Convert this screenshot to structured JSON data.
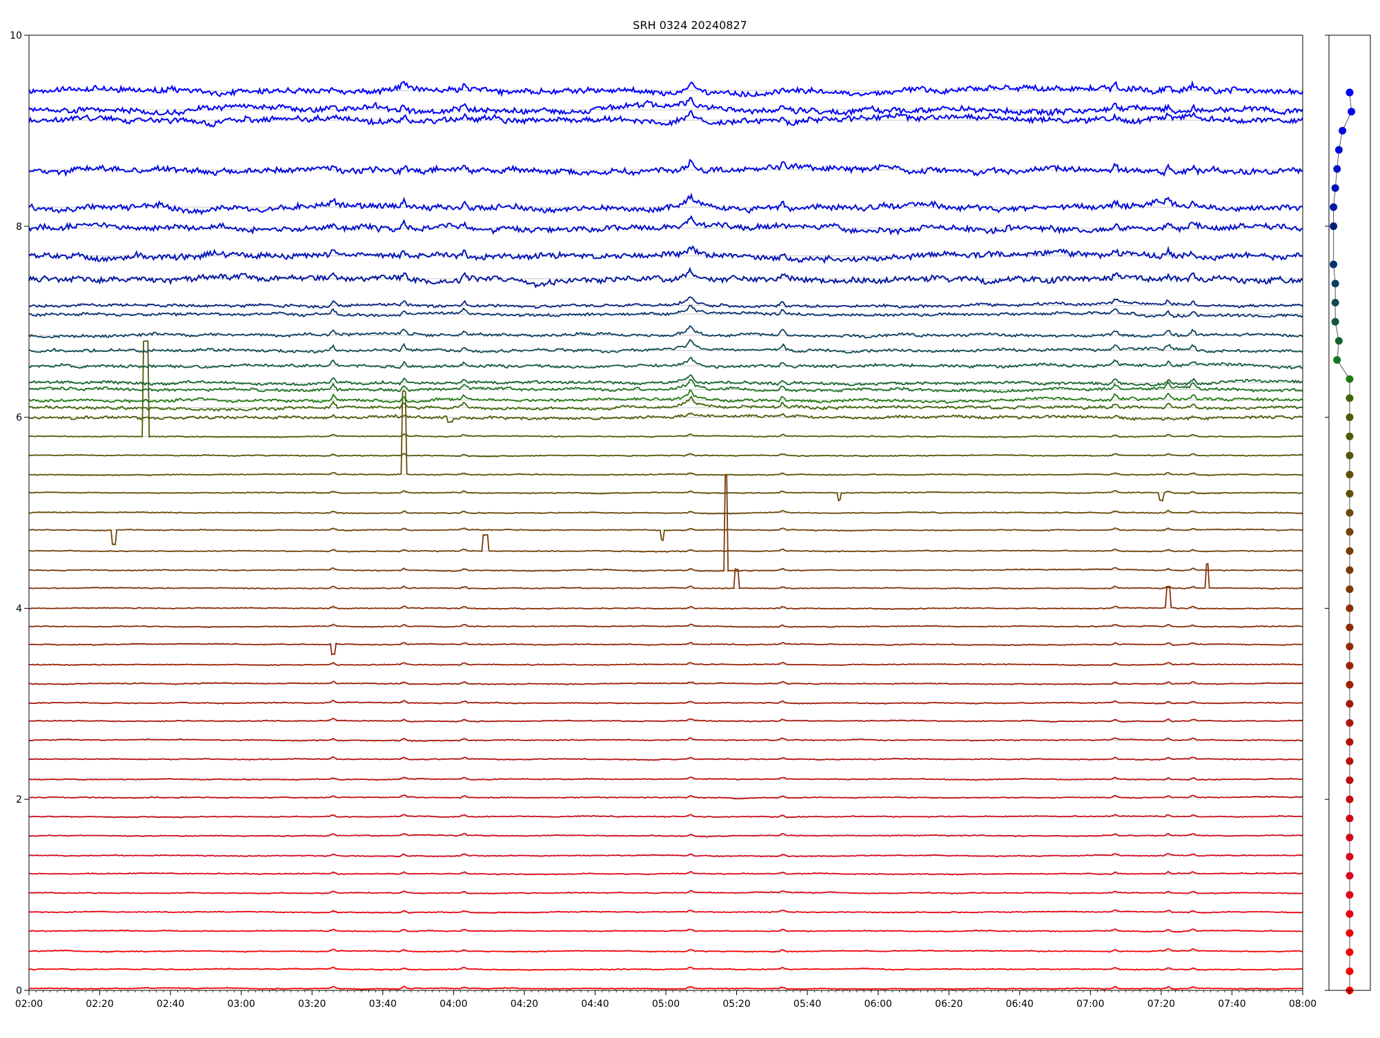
{
  "chart_data": [
    {
      "type": "line",
      "title": "SRH 0324 20240827",
      "xlabel": "",
      "ylabel": "",
      "xlim": [
        "02:00",
        "08:00"
      ],
      "ylim": [
        0,
        10
      ],
      "x_ticks": [
        "02:00",
        "02:20",
        "02:40",
        "03:00",
        "03:20",
        "03:40",
        "04:00",
        "04:20",
        "04:40",
        "05:00",
        "05:20",
        "05:40",
        "06:00",
        "06:20",
        "06:40",
        "07:00",
        "07:20",
        "07:40",
        "08:00"
      ],
      "y_ticks": [
        "0",
        "2",
        "4",
        "6",
        "8",
        "10"
      ],
      "grid": "horizontal lines at each trace baseline",
      "series_note": "48 stacked traces; baseline offsets in y data units, color per trace",
      "series": [
        {
          "offset": 0.0,
          "color": "#ff0000"
        },
        {
          "offset": 0.2,
          "color": "#f90205"
        },
        {
          "offset": 0.4,
          "color": "#f3030a"
        },
        {
          "offset": 0.6,
          "color": "#ed040f"
        },
        {
          "offset": 0.8,
          "color": "#e70514"
        },
        {
          "offset": 1.0,
          "color": "#e10619"
        },
        {
          "offset": 1.2,
          "color": "#db071e"
        },
        {
          "offset": 1.4,
          "color": "#d50820"
        },
        {
          "offset": 1.6,
          "color": "#cf0a1c"
        },
        {
          "offset": 1.8,
          "color": "#c90c18"
        },
        {
          "offset": 2.0,
          "color": "#c30e14"
        },
        {
          "offset": 2.2,
          "color": "#bd1010"
        },
        {
          "offset": 2.4,
          "color": "#b7120e"
        },
        {
          "offset": 2.6,
          "color": "#b1150c"
        },
        {
          "offset": 2.8,
          "color": "#ab180a"
        },
        {
          "offset": 3.0,
          "color": "#a51b08"
        },
        {
          "offset": 3.2,
          "color": "#9f1f08"
        },
        {
          "offset": 3.4,
          "color": "#992308"
        },
        {
          "offset": 3.6,
          "color": "#932708"
        },
        {
          "offset": 3.8,
          "color": "#8d2b08"
        },
        {
          "offset": 4.0,
          "color": "#873008"
        },
        {
          "offset": 4.2,
          "color": "#813508"
        },
        {
          "offset": 4.4,
          "color": "#7b3a08"
        },
        {
          "offset": 4.6,
          "color": "#753f08"
        },
        {
          "offset": 4.8,
          "color": "#6f4408"
        },
        {
          "offset": 5.0,
          "color": "#694908"
        },
        {
          "offset": 5.2,
          "color": "#634d08"
        },
        {
          "offset": 5.4,
          "color": "#5d5108"
        },
        {
          "offset": 5.6,
          "color": "#575508"
        },
        {
          "offset": 5.8,
          "color": "#515908"
        },
        {
          "offset": 6.0,
          "color": "#4b5d08"
        },
        {
          "offset": 6.2,
          "color": "#3f6408"
        },
        {
          "offset": 6.4,
          "color": "#1f7a10"
        },
        {
          "offset": 6.6,
          "color": "#1a7020"
        },
        {
          "offset": 6.8,
          "color": "#156430"
        },
        {
          "offset": 7.0,
          "color": "#115840"
        },
        {
          "offset": 7.2,
          "color": "#0d4c50"
        },
        {
          "offset": 7.4,
          "color": "#0a4060"
        },
        {
          "offset": 7.6,
          "color": "#083070"
        },
        {
          "offset": 7.8,
          "color": "#062080"
        },
        {
          "offset": 8.0,
          "color": "#0418a0"
        },
        {
          "offset": 8.2,
          "color": "#0314b8"
        },
        {
          "offset": 8.4,
          "color": "#0210c8"
        },
        {
          "offset": 8.6,
          "color": "#010cd8"
        },
        {
          "offset": 8.8,
          "color": "#0008e0"
        },
        {
          "offset": 9.0,
          "color": "#0004e8"
        },
        {
          "offset": 9.2,
          "color": "#0002f0"
        },
        {
          "offset": 9.4,
          "color": "#0000ff"
        }
      ],
      "trace_baselines_y": [
        0.02,
        0.22,
        0.41,
        0.62,
        0.82,
        1.02,
        1.22,
        1.41,
        1.62,
        1.82,
        2.02,
        2.21,
        2.42,
        2.62,
        2.82,
        3.01,
        3.21,
        3.41,
        3.62,
        3.81,
        4.0,
        4.21,
        4.4,
        4.6,
        4.82,
        5.0,
        5.21,
        5.4,
        5.6,
        5.8,
        6.0,
        6.1,
        6.18,
        6.29,
        6.36,
        6.54,
        6.7,
        6.86,
        7.08,
        7.17,
        7.45,
        7.69,
        7.98,
        8.2,
        8.59,
        9.11,
        9.22,
        9.42
      ],
      "spikes": [
        {
          "trace": 29,
          "time": "02:33",
          "amp": 1.0
        },
        {
          "trace": 27,
          "time": "03:46",
          "amp": 0.85
        },
        {
          "trace": 22,
          "time": "05:17",
          "amp": 1.0
        },
        {
          "trace": 21,
          "time": "05:20",
          "amp": 0.2
        },
        {
          "trace": 20,
          "time": "07:22",
          "amp": 0.2
        },
        {
          "trace": 21,
          "time": "07:33",
          "amp": 0.25
        },
        {
          "trace": 23,
          "time": "04:09",
          "amp": 0.17
        },
        {
          "trace": 24,
          "time": "02:24",
          "amp": -0.15
        },
        {
          "trace": 24,
          "time": "04:59",
          "amp": -0.1
        },
        {
          "trace": 18,
          "time": "03:26",
          "amp": -0.12
        },
        {
          "trace": 26,
          "time": "05:49",
          "amp": -0.08
        },
        {
          "trace": 26,
          "time": "07:20",
          "amp": -0.08
        },
        {
          "trace": 30,
          "time": "03:59",
          "amp": -0.05
        }
      ]
    },
    {
      "type": "scatter",
      "title": "",
      "ylim": [
        0,
        10
      ],
      "points_x": [
        0.5,
        0.5,
        0.5,
        0.5,
        0.5,
        0.5,
        0.5,
        0.5,
        0.5,
        0.5,
        0.5,
        0.5,
        0.5,
        0.5,
        0.5,
        0.5,
        0.5,
        0.5,
        0.5,
        0.5,
        0.5,
        0.5,
        0.5,
        0.5,
        0.5,
        0.5,
        0.5,
        0.5,
        0.5,
        0.5,
        0.5,
        0.5,
        0.5,
        0.15,
        0.2,
        0.1,
        0.1,
        0.1,
        0.05,
        0.05,
        0.05,
        0.1,
        0.15,
        0.2,
        0.3,
        0.55,
        0.5,
        0.5
      ],
      "points_y": [
        0.0,
        0.2,
        0.4,
        0.6,
        0.8,
        1.0,
        1.2,
        1.4,
        1.6,
        1.8,
        2.0,
        2.2,
        2.4,
        2.6,
        2.8,
        3.0,
        3.2,
        3.4,
        3.6,
        3.8,
        4.0,
        4.2,
        4.4,
        4.6,
        4.8,
        5.0,
        5.2,
        5.4,
        5.6,
        5.8,
        6.0,
        6.2,
        6.4,
        6.6,
        6.8,
        7.0,
        7.2,
        7.4,
        7.6,
        8.0,
        8.2,
        8.4,
        8.6,
        8.8,
        9.0,
        9.2,
        9.4,
        9.4
      ]
    }
  ]
}
